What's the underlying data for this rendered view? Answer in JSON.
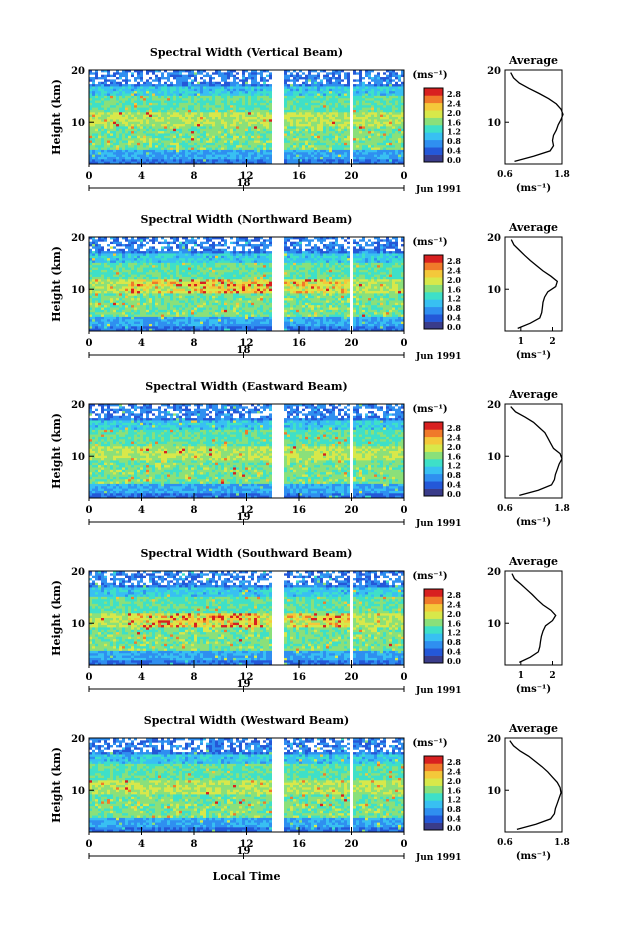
{
  "figure": {
    "xlabel": "Local Time",
    "colorbar_ticks": [
      "2.8",
      "2.4",
      "2.0",
      "1.6",
      "1.2",
      "0.8",
      "0.4",
      "0.0"
    ],
    "colorbar_unit": "(ms⁻¹)",
    "profile_title": "Average",
    "profile_xlabel": "(ms⁻¹)",
    "date_label": "Jun 1991",
    "colors": {
      "cmap": [
        "#3a3c8a",
        "#2458d8",
        "#2f8ff0",
        "#38c0f2",
        "#3ee0c8",
        "#8ae07a",
        "#d8e84a",
        "#f4c83a",
        "#f07a2a",
        "#d82020"
      ]
    }
  },
  "chart_data": [
    {
      "type": "heatmap",
      "title": "Spectral Width (Vertical Beam)",
      "ylabel": "Height (km)",
      "x_ticks": [
        "0",
        "4",
        "8",
        "12",
        "16",
        "20",
        "0"
      ],
      "day_ticks": [
        "18"
      ],
      "y_ticks": [
        "20",
        "10"
      ],
      "xlim": [
        0,
        24
      ],
      "ylim": [
        2,
        20
      ],
      "gaps": [
        [
          14.0,
          14.8
        ],
        [
          19.8,
          20.2
        ]
      ],
      "profile": {
        "type": "line",
        "x_ticks": [
          "0.6",
          "1.8"
        ],
        "xlim": [
          0.6,
          1.8
        ],
        "y_ticks": [
          "20",
          "10"
        ],
        "h": [
          2.5,
          3.5,
          4.5,
          5.5,
          6.5,
          7.5,
          8.5,
          9.5,
          10.5,
          11.5,
          12.5,
          13.5,
          14.5,
          15.5,
          16.5,
          17.5,
          18.5,
          19.5
        ],
        "v": [
          0.8,
          1.2,
          1.55,
          1.62,
          1.6,
          1.62,
          1.68,
          1.72,
          1.78,
          1.82,
          1.78,
          1.68,
          1.52,
          1.32,
          1.1,
          0.9,
          0.78,
          0.72
        ]
      }
    },
    {
      "type": "heatmap",
      "title": "Spectral Width (Northward Beam)",
      "ylabel": "Height (km)",
      "x_ticks": [
        "0",
        "4",
        "8",
        "12",
        "16",
        "20",
        "0"
      ],
      "day_ticks": [
        "18"
      ],
      "y_ticks": [
        "20",
        "10"
      ],
      "xlim": [
        0,
        24
      ],
      "ylim": [
        2,
        20
      ],
      "gaps": [
        [
          14.0,
          14.8
        ],
        [
          19.8,
          20.2
        ]
      ],
      "profile": {
        "type": "line",
        "x_ticks": [
          "1",
          "2"
        ],
        "xlim": [
          0.5,
          2.3
        ],
        "y_ticks": [
          "20",
          "10"
        ],
        "h": [
          2.5,
          3.5,
          4.5,
          5.5,
          6.5,
          7.5,
          8.5,
          9.5,
          10.5,
          11.5,
          12.5,
          13.5,
          14.5,
          15.5,
          16.5,
          17.5,
          18.5,
          19.5
        ],
        "v": [
          0.9,
          1.3,
          1.6,
          1.66,
          1.68,
          1.7,
          1.75,
          1.85,
          2.1,
          2.15,
          1.95,
          1.7,
          1.5,
          1.3,
          1.12,
          0.95,
          0.78,
          0.7
        ]
      }
    },
    {
      "type": "heatmap",
      "title": "Spectral Width (Eastward Beam)",
      "ylabel": "Height (km)",
      "x_ticks": [
        "0",
        "4",
        "8",
        "12",
        "16",
        "20",
        "0"
      ],
      "day_ticks": [
        "19"
      ],
      "y_ticks": [
        "20",
        "10"
      ],
      "xlim": [
        0,
        24
      ],
      "ylim": [
        2,
        20
      ],
      "gaps": [
        [
          14.0,
          14.8
        ],
        [
          19.8,
          20.2
        ]
      ],
      "profile": {
        "type": "line",
        "x_ticks": [
          "0.6",
          "1.8"
        ],
        "xlim": [
          0.6,
          1.8
        ],
        "y_ticks": [
          "20",
          "10"
        ],
        "h": [
          2.5,
          3.5,
          4.5,
          5.5,
          6.5,
          7.5,
          8.5,
          9.5,
          10.5,
          11.5,
          12.5,
          13.5,
          14.5,
          15.5,
          16.5,
          17.5,
          18.5,
          19.5
        ],
        "v": [
          0.9,
          1.3,
          1.58,
          1.64,
          1.66,
          1.7,
          1.74,
          1.8,
          1.76,
          1.62,
          1.56,
          1.5,
          1.44,
          1.32,
          1.2,
          1.02,
          0.82,
          0.72
        ]
      }
    },
    {
      "type": "heatmap",
      "title": "Spectral Width (Southward Beam)",
      "ylabel": "Height (km)",
      "x_ticks": [
        "0",
        "4",
        "8",
        "12",
        "16",
        "20",
        "0"
      ],
      "day_ticks": [
        "19"
      ],
      "y_ticks": [
        "20",
        "10"
      ],
      "xlim": [
        0,
        24
      ],
      "ylim": [
        2,
        20
      ],
      "gaps": [
        [
          14.0,
          14.8
        ],
        [
          19.8,
          20.2
        ]
      ],
      "profile": {
        "type": "line",
        "x_ticks": [
          "1",
          "2"
        ],
        "xlim": [
          0.5,
          2.3
        ],
        "y_ticks": [
          "20",
          "10"
        ],
        "h": [
          2.5,
          3.5,
          4.5,
          5.5,
          6.5,
          7.5,
          8.5,
          9.5,
          10.5,
          11.5,
          12.5,
          13.5,
          14.5,
          15.5,
          16.5,
          17.5,
          18.5,
          19.5
        ],
        "v": [
          0.95,
          1.3,
          1.55,
          1.6,
          1.62,
          1.65,
          1.7,
          1.78,
          2.0,
          2.1,
          1.95,
          1.7,
          1.52,
          1.36,
          1.18,
          1.0,
          0.8,
          0.72
        ]
      }
    },
    {
      "type": "heatmap",
      "title": "Spectral Width (Westward Beam)",
      "ylabel": "Height (km)",
      "x_ticks": [
        "0",
        "4",
        "8",
        "12",
        "16",
        "20",
        "0"
      ],
      "day_ticks": [
        "19"
      ],
      "y_ticks": [
        "20",
        "10"
      ],
      "xlim": [
        0,
        24
      ],
      "ylim": [
        2,
        20
      ],
      "gaps": [
        [
          14.0,
          14.8
        ],
        [
          19.8,
          20.2
        ]
      ],
      "profile": {
        "type": "line",
        "x_ticks": [
          "0.6",
          "1.8"
        ],
        "xlim": [
          0.6,
          1.8
        ],
        "y_ticks": [
          "20",
          "10"
        ],
        "h": [
          2.5,
          3.5,
          4.5,
          5.5,
          6.5,
          7.5,
          8.5,
          9.5,
          10.5,
          11.5,
          12.5,
          13.5,
          14.5,
          15.5,
          16.5,
          17.5,
          18.5,
          19.5
        ],
        "v": [
          0.85,
          1.25,
          1.56,
          1.64,
          1.66,
          1.7,
          1.74,
          1.78,
          1.76,
          1.7,
          1.6,
          1.5,
          1.38,
          1.24,
          1.1,
          0.92,
          0.78,
          0.7
        ]
      }
    }
  ]
}
